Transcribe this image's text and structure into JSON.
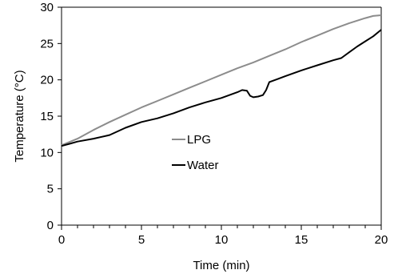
{
  "chart_data": {
    "type": "line",
    "xlabel": "Time (min)",
    "ylabel": "Temperature (°C)",
    "xlim": [
      0,
      20
    ],
    "ylim": [
      0,
      30
    ],
    "xticks": [
      "0",
      "5",
      "10",
      "15",
      "20"
    ],
    "yticks": [
      "0",
      "5",
      "10",
      "15",
      "20",
      "25",
      "30"
    ],
    "grid": false,
    "legend_position": "center-left",
    "series": [
      {
        "name": "LPG",
        "color": "#8c8c8c",
        "x": [
          0,
          1,
          2,
          3,
          4,
          5,
          6,
          7,
          8,
          9,
          10,
          11,
          12,
          13,
          14,
          15,
          16,
          17,
          18,
          19,
          19.5,
          20
        ],
        "y": [
          11.0,
          11.9,
          13.1,
          14.2,
          15.2,
          16.2,
          17.1,
          18.0,
          18.9,
          19.8,
          20.7,
          21.6,
          22.4,
          23.3,
          24.2,
          25.2,
          26.1,
          27.0,
          27.8,
          28.5,
          28.8,
          28.9
        ]
      },
      {
        "name": "Water",
        "color": "#000000",
        "x": [
          0,
          0.5,
          1,
          2,
          3,
          4,
          5,
          6,
          7,
          8,
          9,
          10,
          10.5,
          11,
          11.3,
          11.6,
          11.8,
          12,
          12.3,
          12.6,
          12.8,
          13,
          13.5,
          14,
          15,
          16,
          17,
          17.5,
          18,
          18.5,
          19,
          19.5,
          20
        ],
        "y": [
          10.9,
          11.2,
          11.5,
          11.9,
          12.4,
          13.4,
          14.2,
          14.7,
          15.4,
          16.2,
          16.9,
          17.5,
          17.9,
          18.3,
          18.6,
          18.5,
          17.8,
          17.6,
          17.7,
          17.9,
          18.6,
          19.7,
          20.1,
          20.5,
          21.3,
          22.0,
          22.7,
          23.0,
          23.8,
          24.6,
          25.3,
          26.0,
          26.9
        ]
      }
    ]
  }
}
